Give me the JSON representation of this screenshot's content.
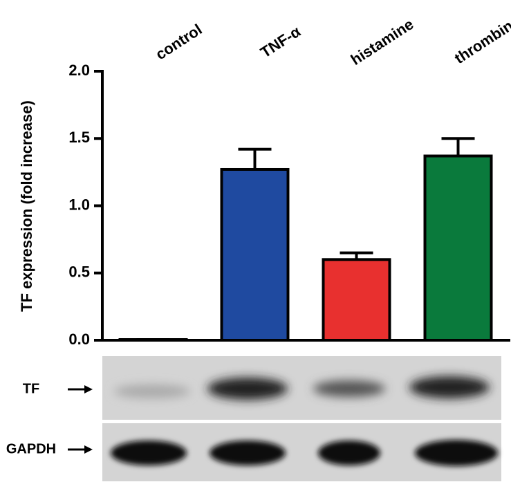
{
  "chart_data": {
    "type": "bar",
    "y_label": "TF expression (fold increase)",
    "categories": [
      "control",
      "TNF-α",
      "histamine",
      "thrombin"
    ],
    "values": [
      0.005,
      1.27,
      0.6,
      1.37
    ],
    "errors": [
      0,
      0.15,
      0.05,
      0.13
    ],
    "colors": [
      "#ffffff",
      "#1f4aa0",
      "#e8302f",
      "#0a7a3c"
    ],
    "ylim": [
      0,
      2.0
    ],
    "yticks": [
      {
        "value": 0,
        "label": "0.0"
      },
      {
        "value": 0.5,
        "label": "0.5"
      },
      {
        "value": 1.0,
        "label": "1.0"
      },
      {
        "value": 1.5,
        "label": "1.5"
      },
      {
        "value": 2.0,
        "label": "2.0"
      }
    ]
  },
  "blot": {
    "rows": [
      "TF",
      "GAPDH"
    ]
  }
}
